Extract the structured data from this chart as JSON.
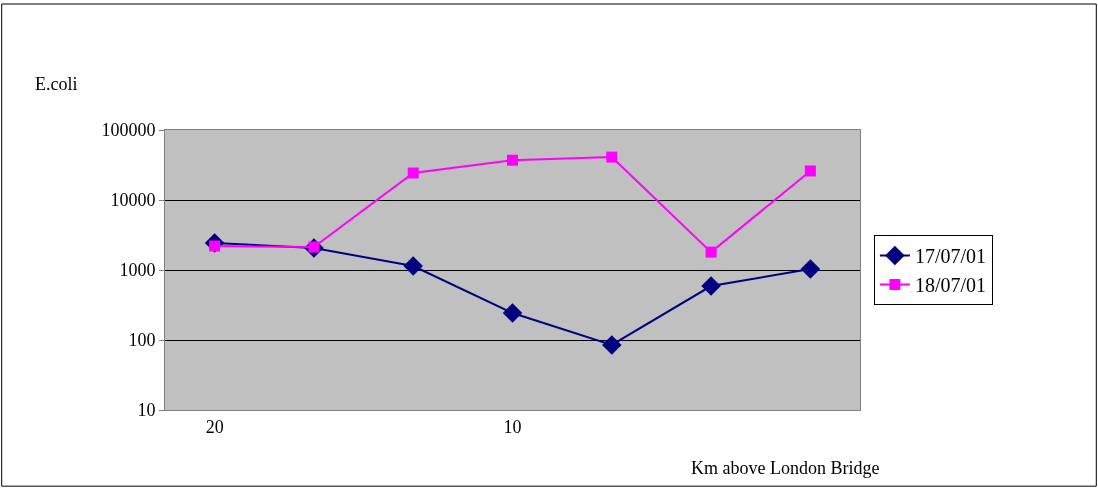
{
  "chart_data": {
    "type": "line",
    "xlabel": "Km above London Bridge",
    "ylabel": "E.coli",
    "categories": [
      "20",
      null,
      null,
      "10",
      null,
      null,
      null
    ],
    "series": [
      {
        "name": "17/07/01",
        "color": "#000080",
        "marker": "diamond",
        "values": [
          2430,
          2060,
          1140,
          243,
          85,
          590,
          1030
        ]
      },
      {
        "name": "18/07/01",
        "color": "#ff00ff",
        "marker": "square",
        "values": [
          2200,
          2130,
          24300,
          37000,
          41000,
          1800,
          26000
        ]
      }
    ],
    "log": "y",
    "ylim": [
      10,
      100000
    ],
    "yticks": [
      10,
      100,
      1000,
      10000,
      100000
    ],
    "grid": "y",
    "legend": "right",
    "line_style": "solid"
  }
}
